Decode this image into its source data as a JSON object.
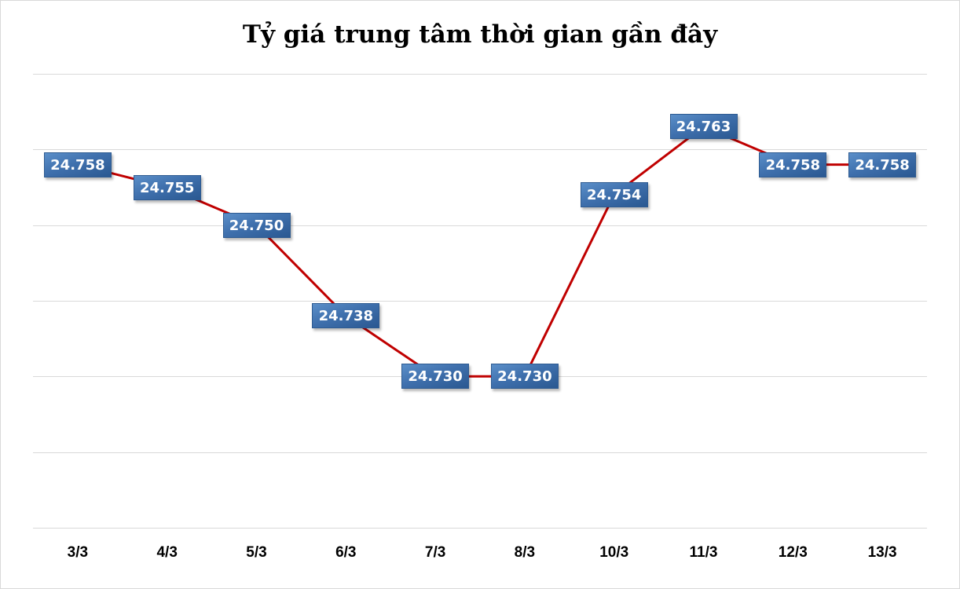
{
  "chart_data": {
    "type": "line",
    "title": "Tỷ giá trung tâm thời gian gần đây",
    "categories": [
      "3/3",
      "4/3",
      "5/3",
      "6/3",
      "7/3",
      "8/3",
      "10/3",
      "11/3",
      "12/3",
      "13/3"
    ],
    "series": [
      {
        "name": "Tỷ giá trung tâm",
        "values": [
          24.758,
          24.755,
          24.75,
          24.738,
          24.73,
          24.73,
          24.754,
          24.763,
          24.758,
          24.758
        ],
        "labels": [
          "24.758",
          "24.755",
          "24.750",
          "24.738",
          "24.730",
          "24.730",
          "24.754",
          "24.763",
          "24.758",
          "24.758"
        ],
        "color": "#c00000"
      }
    ],
    "xlabel": "",
    "ylabel": "",
    "ylim": [
      24.71,
      24.77
    ],
    "ytick_step": 0.01,
    "y_axis_labels_visible": false,
    "grid": true,
    "legend": "none",
    "label_style": {
      "background": "#3f70ad",
      "text_color": "#ffffff"
    }
  }
}
